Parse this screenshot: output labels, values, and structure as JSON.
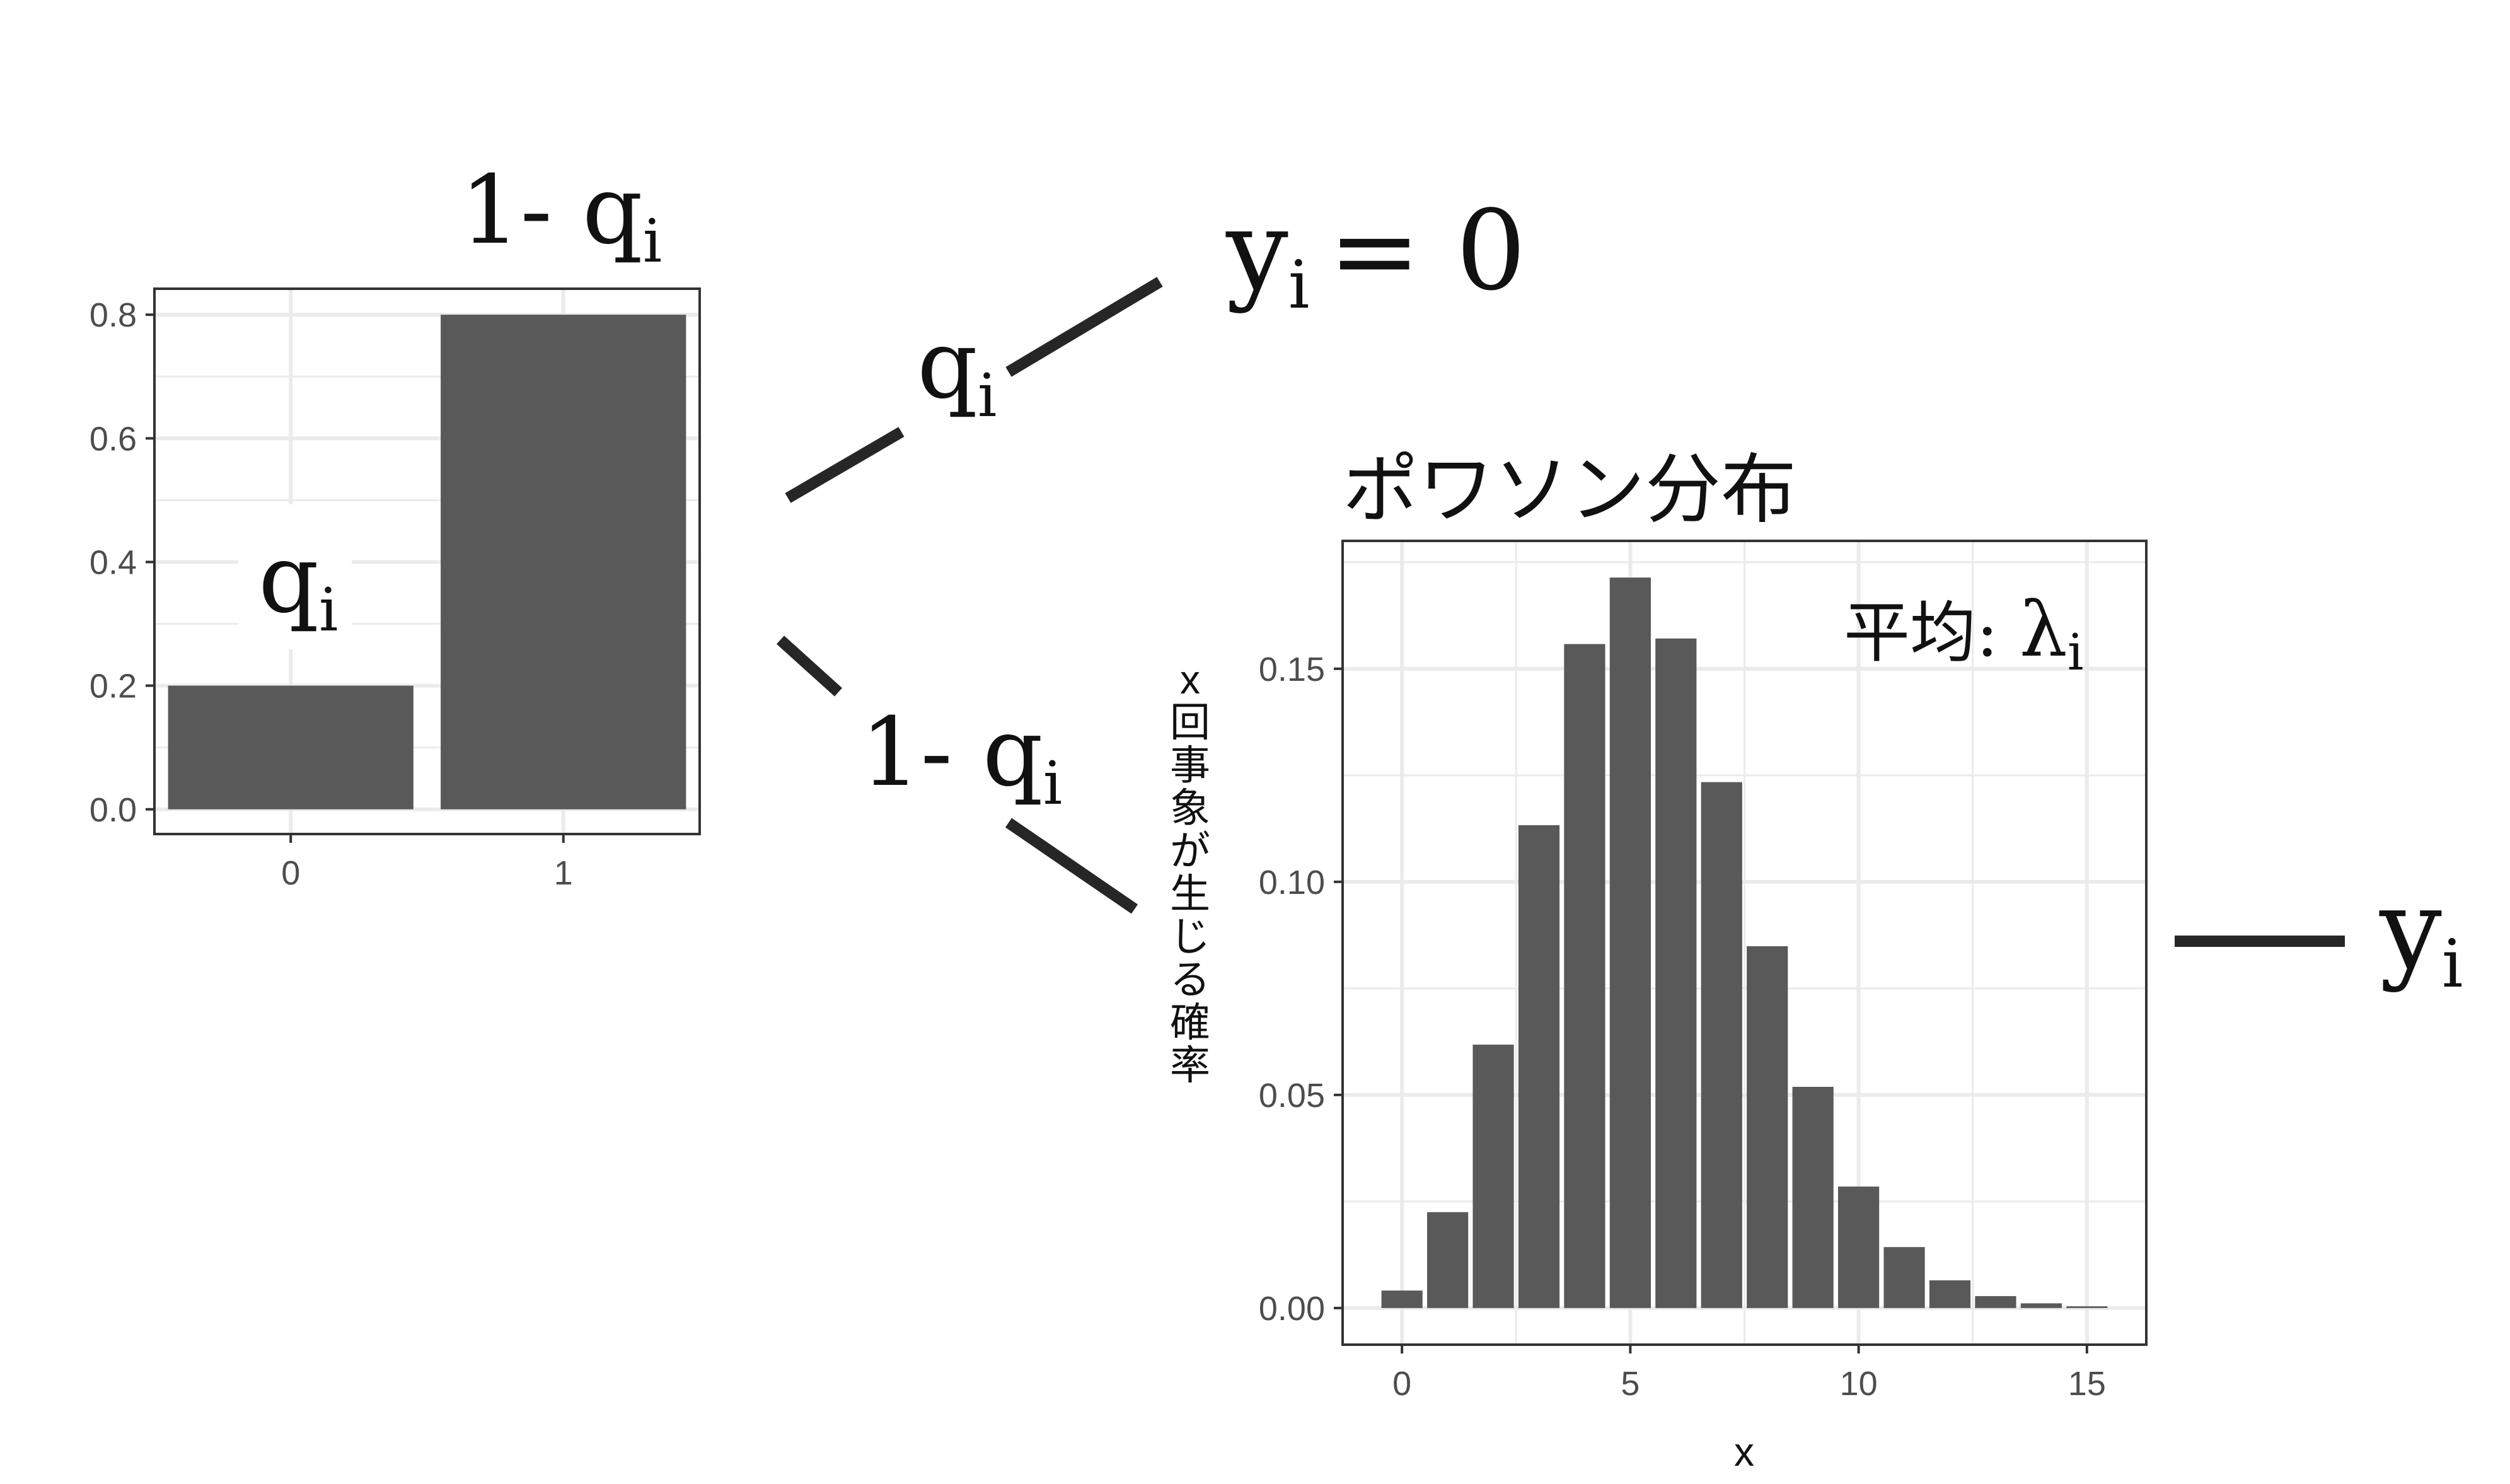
{
  "bernoulli_chart": {
    "categories": [
      "0",
      "1"
    ],
    "y_ticks": [
      "0.0",
      "0.2",
      "0.4",
      "0.6",
      "0.8"
    ],
    "bar_label_0": "q",
    "bar_label_1": "1- q",
    "subscript": "i"
  },
  "branches": {
    "upper_label": "q",
    "lower_label": "1- q",
    "subscript": "i"
  },
  "outcomes": {
    "zero_lhs": "y",
    "zero_sub": "i",
    "zero_rhs": "= 0",
    "final": "y",
    "final_sub": "i"
  },
  "poisson": {
    "title": "ポワソン分布",
    "mean_label": "平均: ",
    "mean_symbol": "λ",
    "mean_sub": "i",
    "y_axis_label": "x回事象が生じる確率",
    "x_axis_label": "x",
    "y_ticks": [
      "0.00",
      "0.05",
      "0.10",
      "0.15"
    ],
    "x_ticks": [
      "0",
      "5",
      "10",
      "15"
    ]
  },
  "chart_data": [
    {
      "type": "bar",
      "categories": [
        "0",
        "1"
      ],
      "values": [
        0.2,
        0.8
      ],
      "ylim": [
        0,
        0.82
      ],
      "xlabel": "",
      "ylabel": "",
      "grid": true
    },
    {
      "type": "bar",
      "title": "ポワソン分布",
      "x": [
        0,
        1,
        2,
        3,
        4,
        5,
        6,
        7,
        8,
        9,
        10,
        11,
        12,
        13,
        14,
        15
      ],
      "values": [
        0.0041,
        0.0225,
        0.0618,
        0.1133,
        0.1558,
        0.1714,
        0.1571,
        0.1234,
        0.0849,
        0.0519,
        0.0285,
        0.0143,
        0.0065,
        0.0028,
        0.0011,
        0.0004
      ],
      "xlabel": "x",
      "ylabel": "x回事象が生じる確率",
      "ylim": [
        0,
        0.18
      ],
      "xlim": [
        -0.5,
        15.5
      ],
      "grid": true
    }
  ],
  "colors": {
    "bar": "#595959",
    "arrow": "#262626",
    "grid": "#ebebeb",
    "frame": "#333333"
  }
}
